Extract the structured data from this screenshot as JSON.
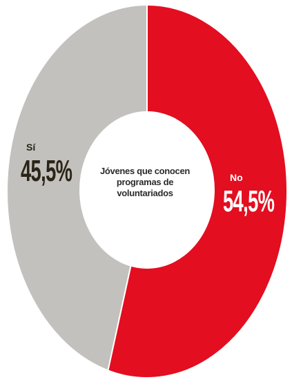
{
  "chart_data": {
    "type": "pie",
    "donut": true,
    "center_text": [
      "Jóvenes que conocen",
      "programas de",
      "voluntariados"
    ],
    "slices": [
      {
        "label": "No",
        "value": 54.5,
        "display": "54,5%",
        "color": "#e30e20"
      },
      {
        "label": "Sí",
        "value": 45.5,
        "display": "45,5%",
        "color": "#c3c1bd"
      }
    ]
  }
}
